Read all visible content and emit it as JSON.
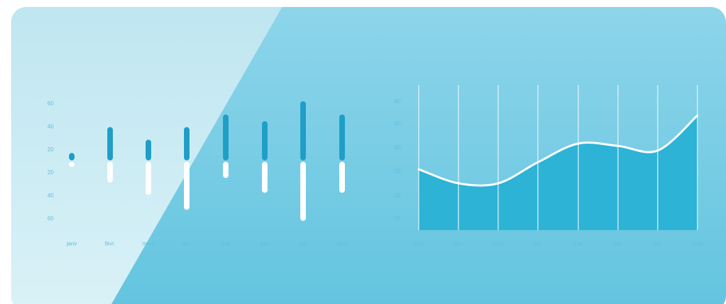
{
  "colors": {
    "card_light": "#c6e9f2",
    "card_main": "#7fd0e6",
    "card_bottom": "#63c4df",
    "bar_up": "#1f9ec6",
    "bar_down": "#ffffff",
    "area_fill": "#2db3d5",
    "line": "#ffffff",
    "tick": "#5cc0dc"
  },
  "chart_data": [
    {
      "type": "bar",
      "categories": [
        "janv",
        "févr.",
        "mars",
        "avr.",
        "mai",
        "juin",
        "juil",
        "août"
      ],
      "series": [
        {
          "values": [
            10,
            45,
            28,
            45,
            62,
            53,
            80,
            62
          ]
        },
        {
          "values": [
            -7,
            -28,
            -45,
            -65,
            -22,
            -42,
            -80,
            -42
          ]
        }
      ],
      "y_tick_labels": [
        "60",
        "40",
        "20",
        "20",
        "40",
        "60"
      ],
      "ylim": [
        -80,
        80
      ],
      "grid": false
    },
    {
      "type": "area",
      "categories": [
        "janv",
        "févr.",
        "mars",
        "avr.",
        "mai",
        "juin",
        "juil",
        "août"
      ],
      "series": [
        {
          "values": [
            26,
            20,
            20,
            29,
            37,
            36,
            34,
            49
          ]
        }
      ],
      "y_tick_labels": [
        "80",
        "60",
        "40",
        "20",
        "20",
        "20"
      ],
      "ylim": [
        0,
        62
      ],
      "grid": true
    }
  ]
}
